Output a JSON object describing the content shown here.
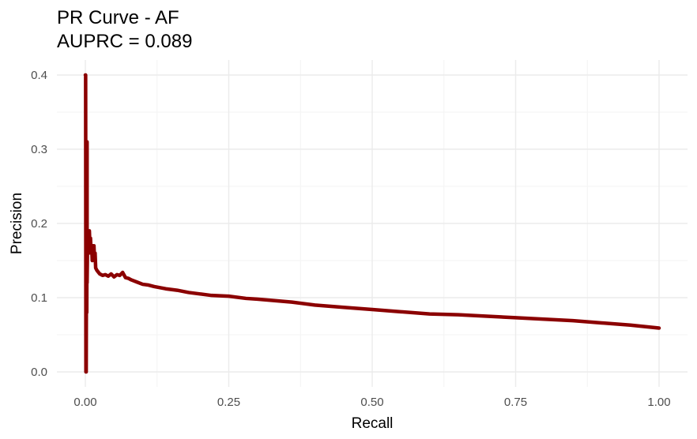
{
  "chart_data": {
    "type": "line",
    "title": "PR Curve - AF",
    "subtitle": "AUPRC = 0.089",
    "xlabel": "Recall",
    "ylabel": "Precision",
    "xlim": [
      0,
      1
    ],
    "ylim": [
      0,
      0.4
    ],
    "x_ticks": [
      "0.00",
      "0.25",
      "0.50",
      "0.75",
      "1.00"
    ],
    "y_ticks": [
      "0.0",
      "0.1",
      "0.2",
      "0.3",
      "0.4"
    ],
    "grid": true,
    "legend": "none",
    "line_color": "#8b0000",
    "series": [
      {
        "x": [
          0,
          0.0005,
          0.001,
          0.001,
          0.0015,
          0.002,
          0.002,
          0.0025,
          0.003,
          0.003,
          0.0035,
          0.004,
          0.005,
          0.006,
          0.007,
          0.008,
          0.009,
          0.01,
          0.011,
          0.012,
          0.013,
          0.014,
          0.015,
          0.016,
          0.017,
          0.018,
          0.02,
          0.022,
          0.025,
          0.03,
          0.035,
          0.04,
          0.045,
          0.05,
          0.055,
          0.06,
          0.065,
          0.07,
          0.075,
          0.08,
          0.09,
          0.1,
          0.11,
          0.12,
          0.14,
          0.16,
          0.18,
          0.2,
          0.22,
          0.25,
          0.28,
          0.3,
          0.33,
          0.36,
          0.4,
          0.45,
          0.5,
          0.55,
          0.6,
          0.65,
          0.7,
          0.75,
          0.8,
          0.85,
          0.9,
          0.95,
          1.0
        ],
        "y": [
          0.4,
          0.4,
          0.0,
          0.1,
          0.0,
          0.18,
          0.1,
          0.08,
          0.31,
          0.12,
          0.15,
          0.19,
          0.18,
          0.16,
          0.19,
          0.17,
          0.18,
          0.16,
          0.17,
          0.15,
          0.17,
          0.16,
          0.17,
          0.15,
          0.16,
          0.14,
          0.137,
          0.135,
          0.132,
          0.13,
          0.131,
          0.129,
          0.132,
          0.128,
          0.131,
          0.13,
          0.134,
          0.127,
          0.126,
          0.124,
          0.121,
          0.118,
          0.117,
          0.115,
          0.112,
          0.11,
          0.107,
          0.105,
          0.103,
          0.102,
          0.099,
          0.098,
          0.096,
          0.094,
          0.09,
          0.087,
          0.084,
          0.081,
          0.078,
          0.077,
          0.075,
          0.073,
          0.071,
          0.069,
          0.066,
          0.063,
          0.059
        ]
      }
    ]
  }
}
